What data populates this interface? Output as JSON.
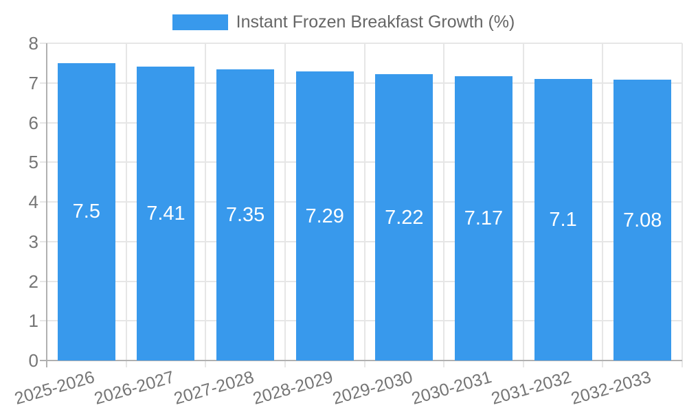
{
  "chart_data": {
    "type": "bar",
    "title": "Instant Frozen Breakfast Growth (%)",
    "categories": [
      "2025-2026",
      "2026-2027",
      "2027-2028",
      "2028-2029",
      "2029-2030",
      "2030-2031",
      "2031-2032",
      "2032-2033"
    ],
    "values": [
      7.5,
      7.41,
      7.35,
      7.29,
      7.22,
      7.17,
      7.1,
      7.08
    ],
    "value_labels": [
      "7.5",
      "7.41",
      "7.35",
      "7.29",
      "7.22",
      "7.17",
      "7.1",
      "7.08"
    ],
    "xlabel": "",
    "ylabel": "",
    "ylim": [
      0,
      8
    ],
    "yticks": [
      0,
      1,
      2,
      3,
      4,
      5,
      6,
      7,
      8
    ],
    "grid": "on",
    "legend_position": "top-center",
    "colors": {
      "bar": "#3899ec",
      "grid": "#e6e6e6",
      "axis": "#b0b0b0",
      "tick_label": "#757575",
      "legend_text": "#666666",
      "value_label": "#ffffff"
    }
  }
}
